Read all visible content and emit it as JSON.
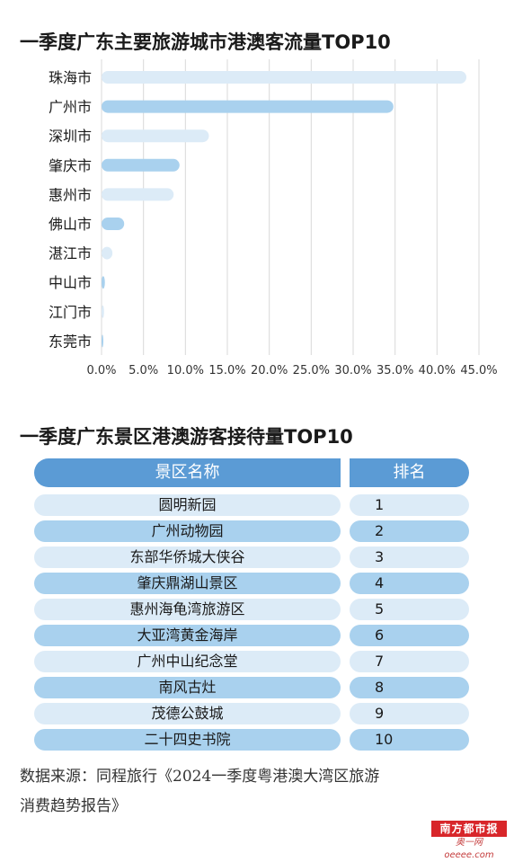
{
  "chart_title": "一季度广东主要旅游城市港澳客流量TOP10",
  "chart_data": {
    "type": "bar",
    "orientation": "horizontal",
    "categories": [
      "珠海市",
      "广州市",
      "深圳市",
      "肇庆市",
      "惠州市",
      "佛山市",
      "湛江市",
      "中山市",
      "江门市",
      "东莞市"
    ],
    "values": [
      43.5,
      34.8,
      12.8,
      9.3,
      8.6,
      2.7,
      1.3,
      0.4,
      0.3,
      0.2
    ],
    "xlim": [
      0,
      45
    ],
    "xticks": [
      "0.0%",
      "5.0%",
      "10.0%",
      "15.0%",
      "20.0%",
      "25.0%",
      "30.0%",
      "35.0%",
      "40.0%",
      "45.0%"
    ],
    "grid": true,
    "colors": [
      "#dcebf7",
      "#a9d1ee"
    ]
  },
  "table_title": "一季度广东景区港澳游客接待量TOP10",
  "table": {
    "headers": [
      "景区名称",
      "排名"
    ],
    "rows": [
      [
        "圆明新园",
        "1"
      ],
      [
        "广州动物园",
        "2"
      ],
      [
        "东部华侨城大侠谷",
        "3"
      ],
      [
        "肇庆鼎湖山景区",
        "4"
      ],
      [
        "惠州海龟湾旅游区",
        "5"
      ],
      [
        "大亚湾黄金海岸",
        "6"
      ],
      [
        "广州中山纪念堂",
        "7"
      ],
      [
        "南风古灶",
        "8"
      ],
      [
        "茂德公鼓城",
        "9"
      ],
      [
        "二十四史书院",
        "10"
      ]
    ]
  },
  "source_line1": "数据来源：同程旅行《2024一季度粤港澳大湾区旅游",
  "source_line2": "消费趋势报告》",
  "logo_text": "南方都市报",
  "logo_sub": "奥一网oeeee.com"
}
